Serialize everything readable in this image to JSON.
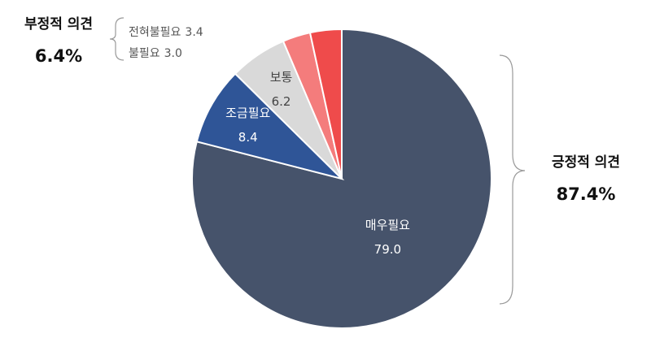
{
  "chart_data": {
    "type": "pie",
    "categories": [
      "매우필요",
      "조금필요",
      "보통",
      "불필요",
      "전혀불필요"
    ],
    "values": [
      79,
      8.4,
      6.2,
      3,
      3.4
    ],
    "value_labels": [
      "79.0",
      "8.4",
      "6.2",
      "3.0",
      "3.4"
    ],
    "colors": [
      "#46536b",
      "#2f5597",
      "#d9d9d9",
      "#f47c7c",
      "#ef4b4b"
    ],
    "annotations": [
      {
        "title": "부정적 의견",
        "text": "6.4%"
      },
      {
        "title": "긍정적 의견",
        "text": "87.4%"
      }
    ]
  }
}
